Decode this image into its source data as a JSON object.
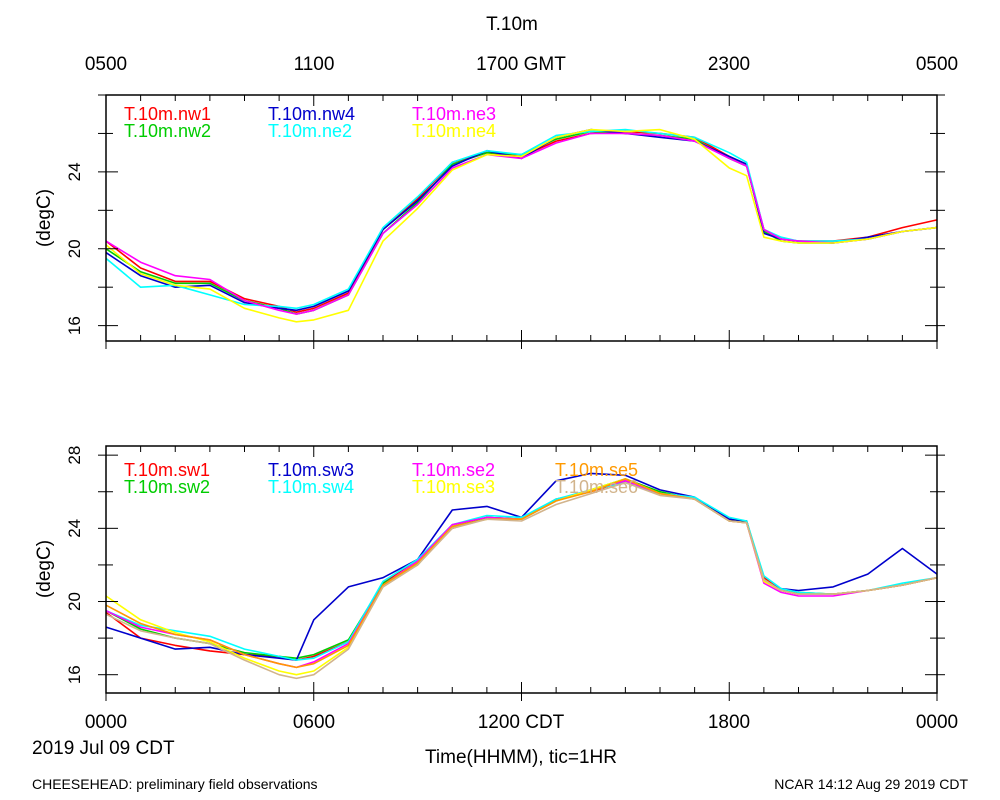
{
  "figure": {
    "title": "T.10m",
    "footer_left": "CHEESEHEAD: preliminary field observations",
    "footer_right": "NCAR 14:12 Aug 29 2019 CDT",
    "date_label": "2019 Jul 09 CDT",
    "xlabel": "Time(HHMM), tic=1HR"
  },
  "top_axis": {
    "ticks": [
      "0500",
      "1100",
      "1700 GMT",
      "2300",
      "0500"
    ]
  },
  "bottom_axis": {
    "ticks": [
      "0000",
      "0600",
      "1200 CDT",
      "1800",
      "0000"
    ]
  },
  "chart_data": [
    {
      "type": "line",
      "ylabel": "(degC)",
      "xlim": [
        0,
        24
      ],
      "ylim": [
        15.2,
        28.0
      ],
      "yticks": [
        16,
        20,
        24
      ],
      "yticklabels": [
        "16",
        "20",
        "24"
      ],
      "x": [
        0,
        1,
        2,
        3,
        4,
        5,
        5.5,
        6,
        7,
        8,
        9,
        10,
        11,
        12,
        13,
        14,
        15,
        16,
        17,
        18,
        18.5,
        19,
        19.5,
        20,
        21,
        22,
        23,
        24
      ],
      "series": [
        {
          "name": "T.10m.nw1",
          "color": "#ff0000",
          "values": [
            20.4,
            19.0,
            18.3,
            18.3,
            17.4,
            17.0,
            16.7,
            16.9,
            17.7,
            21.0,
            22.6,
            24.5,
            25.0,
            24.8,
            25.6,
            26.0,
            26.1,
            26.0,
            25.8,
            24.8,
            24.4,
            21.0,
            20.5,
            20.4,
            20.4,
            20.6,
            21.1,
            21.5
          ]
        },
        {
          "name": "T.10m.nw2",
          "color": "#00cc00",
          "values": [
            20.0,
            18.8,
            18.2,
            18.2,
            17.3,
            16.9,
            16.6,
            16.8,
            17.6,
            20.8,
            22.4,
            24.4,
            25.0,
            24.9,
            25.7,
            26.1,
            26.0,
            25.9,
            25.7,
            24.7,
            24.3,
            20.9,
            20.4,
            20.3,
            20.3,
            20.5,
            20.9,
            21.1
          ]
        },
        {
          "name": "T.10m.nw4",
          "color": "#0000cc",
          "values": [
            19.8,
            18.6,
            18.0,
            18.1,
            17.2,
            16.9,
            16.8,
            17.0,
            17.8,
            21.0,
            22.5,
            24.3,
            25.1,
            24.7,
            25.8,
            26.2,
            26.0,
            25.8,
            25.6,
            24.8,
            24.4,
            20.8,
            20.5,
            20.4,
            20.3,
            20.6,
            20.9,
            21.1
          ]
        },
        {
          "name": "T.10m.ne2",
          "color": "#00ffff",
          "values": [
            19.5,
            18.0,
            18.1,
            17.6,
            17.1,
            17.0,
            16.9,
            17.1,
            17.9,
            21.1,
            22.7,
            24.5,
            25.1,
            24.9,
            25.9,
            26.1,
            26.2,
            26.0,
            25.8,
            25.0,
            24.5,
            21.0,
            20.6,
            20.4,
            20.4,
            20.5,
            20.9,
            21.1
          ]
        },
        {
          "name": "T.10m.ne3",
          "color": "#ff00ff",
          "values": [
            20.4,
            19.3,
            18.6,
            18.4,
            17.3,
            16.8,
            16.6,
            16.8,
            17.6,
            20.8,
            22.3,
            24.2,
            24.9,
            24.7,
            25.5,
            26.0,
            26.0,
            25.9,
            25.6,
            24.7,
            24.3,
            21.0,
            20.5,
            20.4,
            20.3,
            20.5,
            20.9,
            21.1
          ]
        },
        {
          "name": "T.10m.ne4",
          "color": "#ffff00",
          "values": [
            20.2,
            18.7,
            18.1,
            17.9,
            16.9,
            16.4,
            16.2,
            16.3,
            16.8,
            20.4,
            22.1,
            24.1,
            24.9,
            24.8,
            25.8,
            26.2,
            26.1,
            26.2,
            25.7,
            24.2,
            23.8,
            20.6,
            20.4,
            20.3,
            20.3,
            20.5,
            20.9,
            21.1
          ]
        }
      ]
    },
    {
      "type": "line",
      "ylabel": "(degC)",
      "xlim": [
        0,
        24
      ],
      "ylim": [
        15.0,
        28.5
      ],
      "yticks": [
        16,
        20,
        24,
        28
      ],
      "yticklabels": [
        "16",
        "20",
        "24",
        "28"
      ],
      "x": [
        0,
        1,
        2,
        3,
        4,
        5,
        5.5,
        6,
        7,
        8,
        9,
        10,
        11,
        12,
        13,
        14,
        15,
        16,
        17,
        18,
        18.5,
        19,
        19.5,
        20,
        21,
        22,
        23,
        24
      ],
      "series": [
        {
          "name": "T.10m.sw1",
          "color": "#ff0000",
          "values": [
            19.4,
            18.0,
            17.6,
            17.3,
            17.1,
            17.0,
            16.8,
            17.0,
            17.8,
            21.0,
            22.3,
            24.0,
            24.6,
            24.5,
            25.6,
            26.0,
            26.6,
            25.9,
            25.6,
            24.5,
            24.3,
            21.3,
            20.6,
            20.4,
            20.4,
            20.6,
            20.9,
            21.3
          ]
        },
        {
          "name": "T.10m.sw2",
          "color": "#00cc00",
          "values": [
            19.5,
            18.5,
            18.0,
            17.7,
            17.2,
            17.0,
            16.9,
            17.1,
            17.9,
            21.0,
            22.0,
            24.1,
            24.6,
            24.5,
            25.5,
            26.1,
            26.7,
            26.0,
            25.6,
            24.4,
            24.4,
            21.2,
            20.6,
            20.5,
            20.4,
            20.6,
            20.9,
            21.3
          ]
        },
        {
          "name": "T.10m.sw3",
          "color": "#0000cc",
          "values": [
            18.6,
            18.0,
            17.4,
            17.5,
            17.1,
            16.9,
            16.8,
            19.0,
            20.8,
            21.3,
            22.3,
            25.0,
            25.2,
            24.6,
            26.6,
            27.0,
            26.9,
            26.1,
            25.7,
            24.5,
            24.4,
            21.1,
            20.7,
            20.6,
            20.8,
            21.5,
            22.9,
            21.5
          ]
        },
        {
          "name": "T.10m.sw4",
          "color": "#00ffff",
          "values": [
            19.5,
            18.7,
            18.4,
            18.1,
            17.4,
            17.0,
            16.8,
            16.9,
            17.8,
            21.1,
            22.3,
            24.2,
            24.7,
            24.6,
            25.6,
            26.1,
            26.5,
            25.9,
            25.7,
            24.6,
            24.4,
            21.4,
            20.7,
            20.5,
            20.4,
            20.6,
            21.0,
            21.3
          ]
        },
        {
          "name": "T.10m.se2",
          "color": "#ff00ff",
          "values": [
            19.5,
            18.6,
            18.2,
            17.9,
            17.1,
            16.6,
            16.4,
            16.7,
            17.7,
            20.9,
            22.2,
            24.2,
            24.6,
            24.5,
            25.5,
            26.1,
            26.6,
            25.9,
            25.6,
            24.4,
            24.3,
            21.0,
            20.5,
            20.3,
            20.3,
            20.6,
            20.9,
            21.3
          ]
        },
        {
          "name": "T.10m.se3",
          "color": "#ffff00",
          "values": [
            20.3,
            19.0,
            18.3,
            17.8,
            16.9,
            16.2,
            16.0,
            16.2,
            17.5,
            20.8,
            22.1,
            24.1,
            24.5,
            24.5,
            25.5,
            26.1,
            26.7,
            25.9,
            25.6,
            24.4,
            24.3,
            21.1,
            20.6,
            20.4,
            20.4,
            20.6,
            20.9,
            21.3
          ]
        },
        {
          "name": "T.10m.se5",
          "color": "#ff9900",
          "values": [
            19.8,
            18.8,
            18.2,
            17.9,
            17.1,
            16.6,
            16.4,
            16.6,
            17.6,
            20.9,
            22.1,
            24.1,
            24.5,
            24.5,
            25.5,
            26.0,
            26.7,
            25.9,
            25.6,
            24.4,
            24.3,
            21.2,
            20.6,
            20.4,
            20.4,
            20.6,
            20.9,
            21.3
          ]
        },
        {
          "name": "T.10m.se6",
          "color": "#d2b48c",
          "values": [
            19.3,
            18.4,
            18.0,
            17.7,
            16.8,
            16.0,
            15.8,
            16.0,
            17.4,
            20.8,
            22.0,
            24.0,
            24.5,
            24.4,
            25.3,
            25.9,
            26.5,
            25.8,
            25.6,
            24.4,
            24.3,
            21.2,
            20.6,
            20.4,
            20.4,
            20.6,
            20.9,
            21.3
          ]
        }
      ]
    }
  ]
}
